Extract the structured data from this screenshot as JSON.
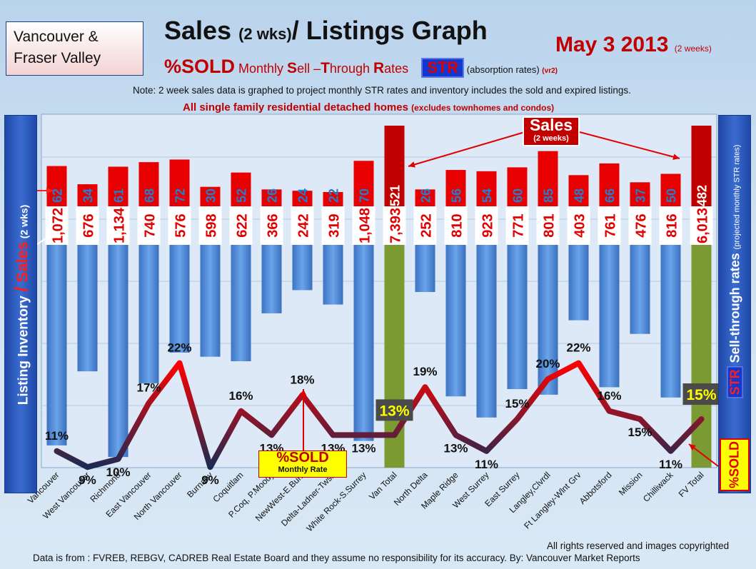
{
  "header": {
    "region_line1": "Vancouver &",
    "region_line2": "Fraser Valley",
    "title_main": "Sales ",
    "title_small": "(2 wks)",
    "title_tail": "/ Listings Graph",
    "date_main": "May 3 2013",
    "date_sub": "(2 weeks)",
    "sold_label": "%SOLD",
    "subtitle_pre": " Monthly ",
    "s_cap": "S",
    "s_rest": "ell –",
    "t_cap": "T",
    "t_rest": "hrough ",
    "r_cap": "R",
    "r_rest": "ates",
    "str_badge": "STR",
    "absorption": " (absorption rates) ",
    "vr2": "(vr2)",
    "note": "Note: 2 week sales data is graphed to project monthly STR rates and inventory includes the sold and expired listings.",
    "note2_main": "All single family residential detached homes ",
    "note2_small": "(excludes townhomes and condos)"
  },
  "left_axis": {
    "label_a": "Listing Inventory ",
    "slash": "/",
    "label_sales": " Sales",
    "label_wks": "  (2 wks)"
  },
  "right_axis": {
    "badge": "STR",
    "label": " Sell-through rates ",
    "sub": " (projected monthly STR rates)",
    "sold_label": "%SOLD"
  },
  "legend": {
    "sales_big": "Sales",
    "sales_small": "(2 weeks)",
    "sold_big": "%SOLD",
    "sold_small": "Monthly Rate"
  },
  "footer": {
    "copyright": "All rights reserved and  images copyrighted",
    "source": "Data is  from : FVREB, REBGV, CADREB Real Estate Board and they assume no responsibility  for its accuracy. By: Vancouver Market Reports"
  },
  "chart_data": {
    "type": "bar",
    "categories": [
      "Vancouver",
      "West Vancouver",
      "Richmond",
      "East Vancouver",
      "North Vancouver",
      "Burnaby",
      "Coquitlam",
      "P.Coq, P.Moody",
      "NewWest-E.Burn",
      "Delta-Ladner-Twsn",
      "White Rock-S.Surrey",
      "Van Total",
      "North Delta",
      "Maple Ridge",
      "West Surrey",
      "East Surrey",
      "Langley,Clvrdl",
      "Ft Langley-Wlnt Grv",
      "Abbotsford",
      "Mission",
      "Chilliwack",
      "FV Total"
    ],
    "series": [
      {
        "name": "Sales",
        "values": [
          62,
          34,
          61,
          68,
          72,
          30,
          52,
          26,
          24,
          22,
          70,
          521,
          26,
          56,
          54,
          60,
          85,
          48,
          66,
          37,
          50,
          482
        ]
      },
      {
        "name": "Listing Inventory",
        "values": [
          1072,
          676,
          1134,
          740,
          576,
          598,
          622,
          366,
          242,
          319,
          1048,
          7393,
          252,
          810,
          923,
          771,
          801,
          403,
          761,
          476,
          816,
          6013
        ]
      },
      {
        "name": "%SOLD",
        "values": [
          11,
          9,
          10,
          17,
          22,
          9,
          16,
          13,
          18,
          13,
          13,
          13,
          19,
          13,
          11,
          15,
          20,
          22,
          16,
          15,
          11,
          15
        ]
      }
    ],
    "display": {
      "sales": [
        "62",
        "34",
        "61",
        "68",
        "72",
        "30",
        "52",
        "26",
        "24",
        "22",
        "70",
        "521",
        "26",
        "56",
        "54",
        "60",
        "85",
        "48",
        "66",
        "37",
        "50",
        "482"
      ],
      "inventory": [
        "1,072",
        "676",
        "1,134",
        "740",
        "576",
        "598",
        "622",
        "366",
        "242",
        "319",
        "1,048",
        "7,393",
        "252",
        "810",
        "923",
        "771",
        "801",
        "403",
        "761",
        "476",
        "816",
        "6,013"
      ],
      "sold": [
        "11%",
        "9%",
        "10%",
        "17%",
        "22%",
        "9%",
        "16%",
        "13%",
        "18%",
        "13%",
        "13%",
        "13%",
        "19%",
        "13%",
        "11%",
        "15%",
        "20%",
        "22%",
        "16%",
        "15%",
        "11%",
        "15%"
      ]
    },
    "totals": [
      "Van Total",
      "FV Total"
    ],
    "colors": {
      "sales_bar": "#e80000",
      "inventory_bar": "#4a87d6",
      "total_bar": "#7b9a32",
      "sales_label": "#1f7fd0",
      "inventory_label": "#e00000",
      "total_sales_bg": "#c00000",
      "line_high": "#ff0000",
      "line_low": "#1c2a52"
    }
  }
}
